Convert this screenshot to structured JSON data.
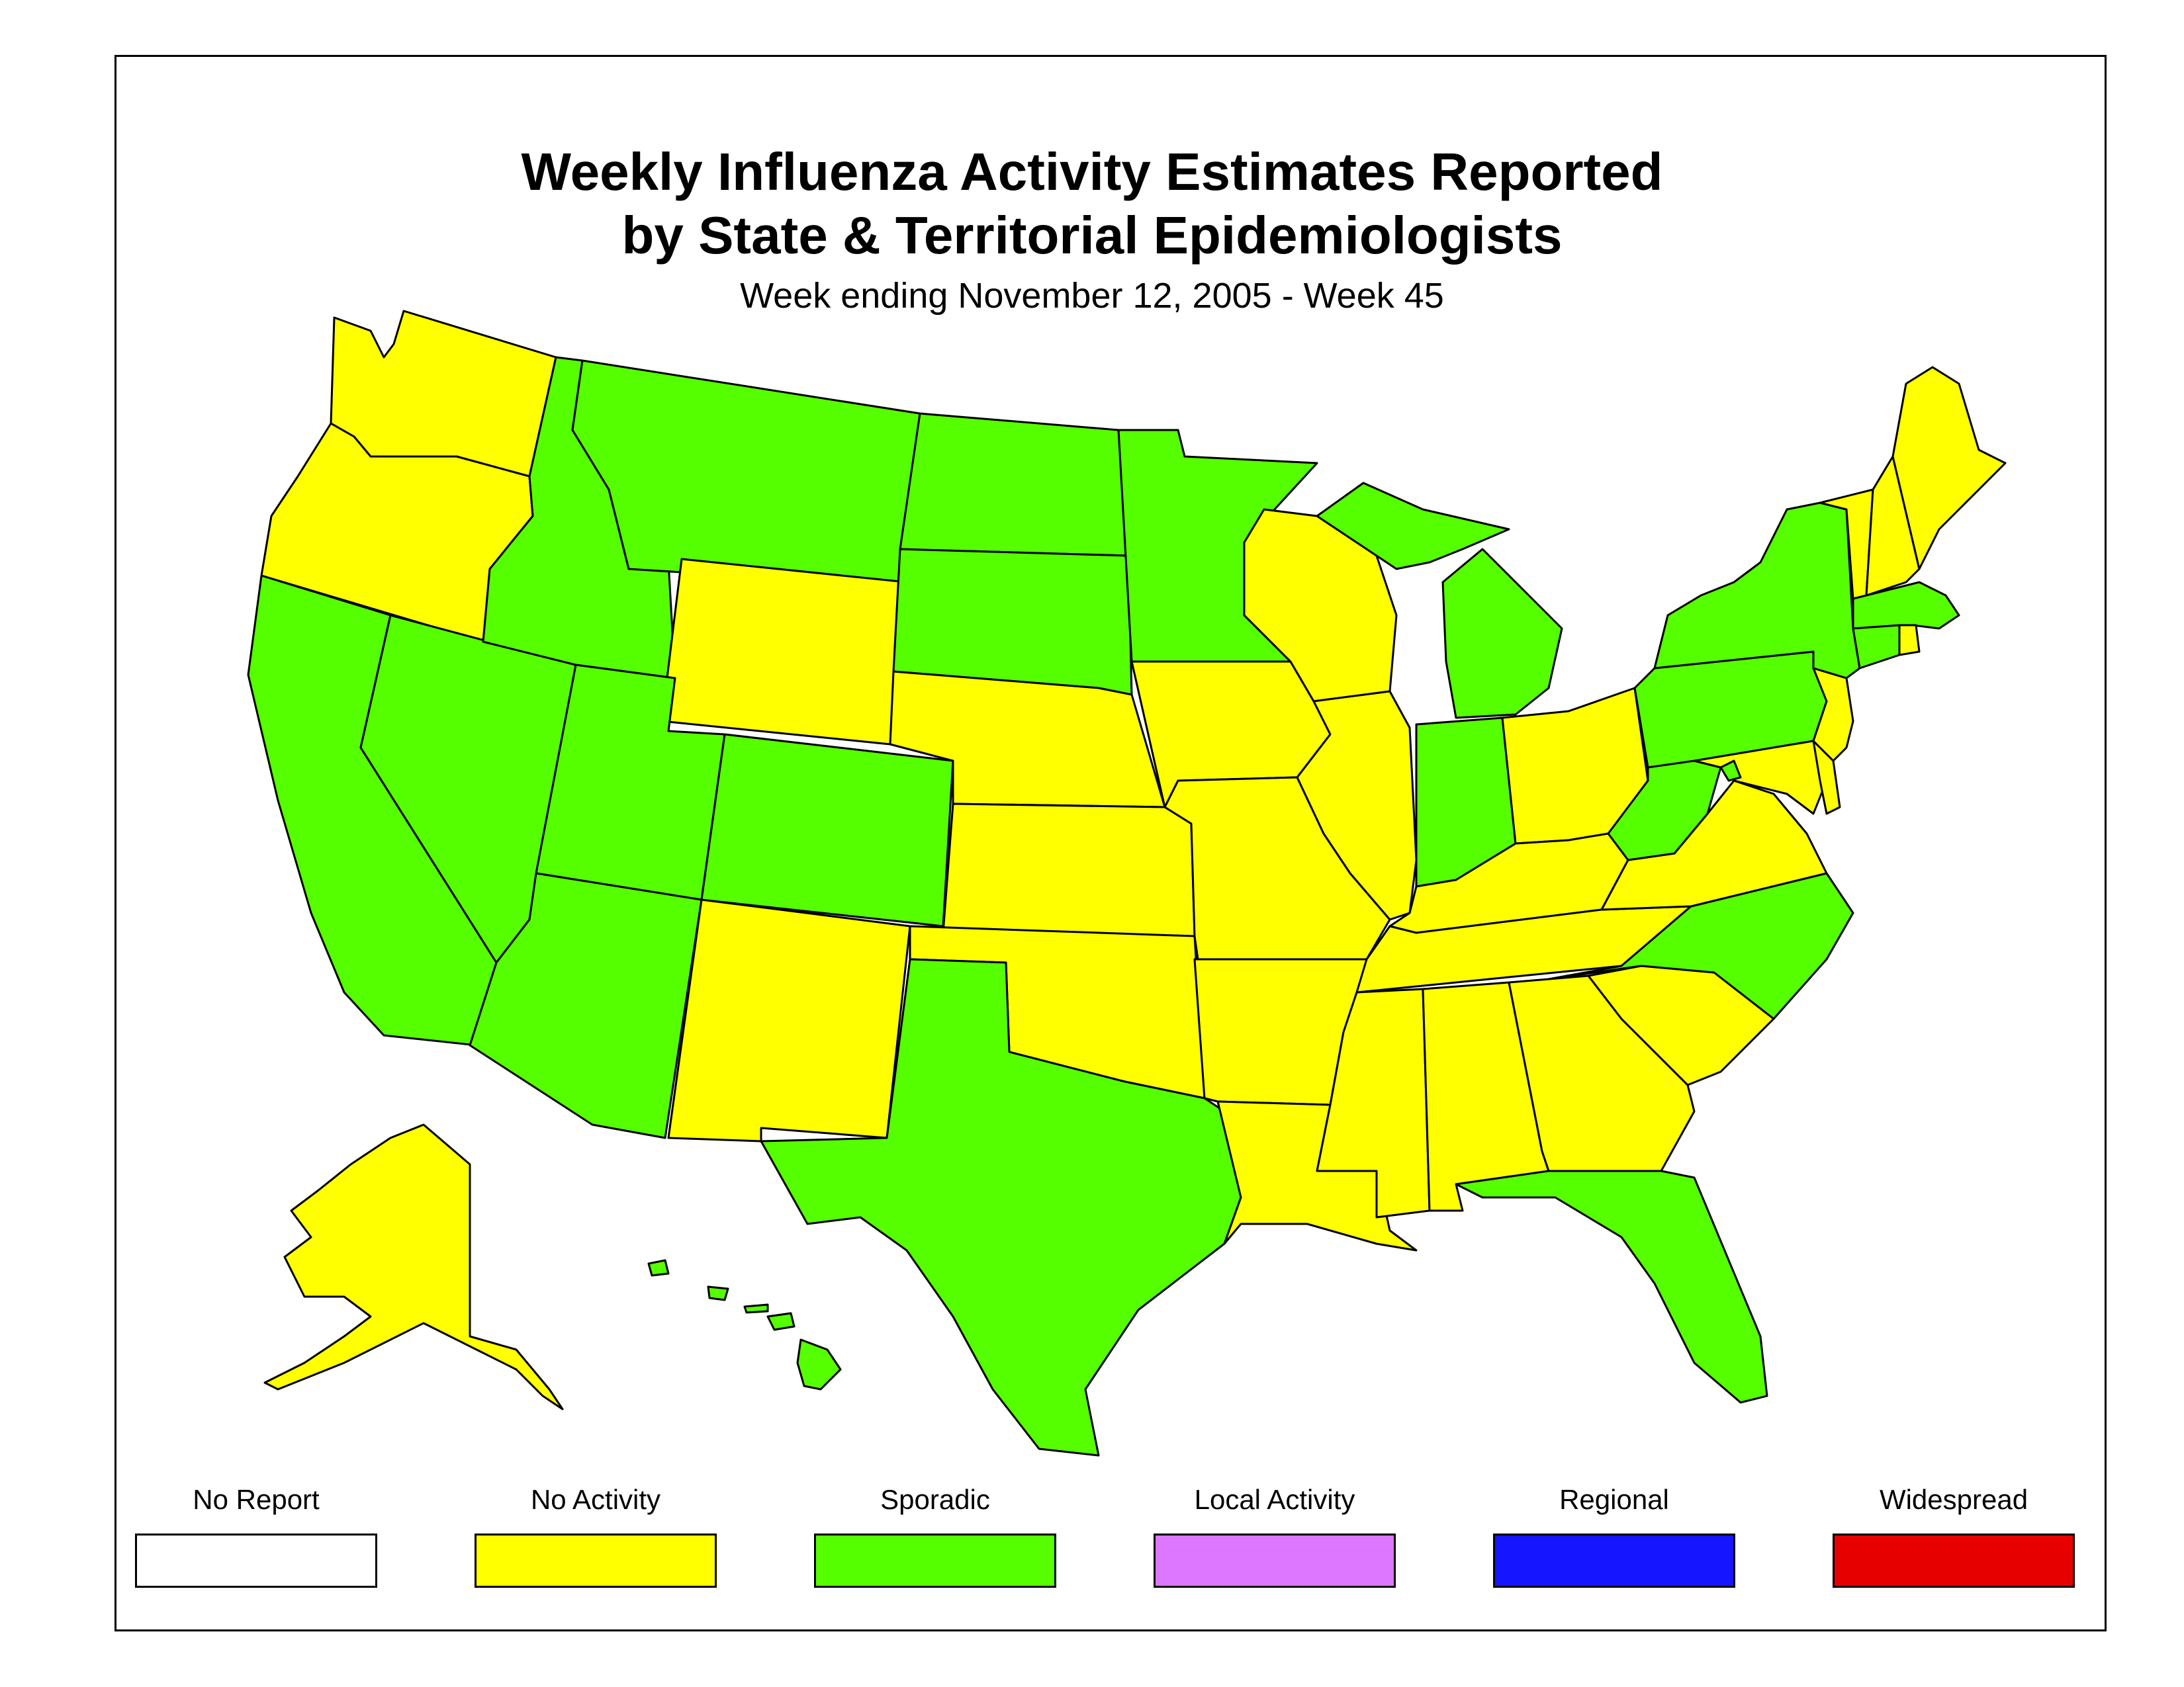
{
  "title_line1": "Weekly Influenza Activity Estimates Reported",
  "title_line2": "by State & Territorial Epidemiologists",
  "subtitle": "Week ending November 12, 2005 - Week 45",
  "legend": [
    {
      "label": "No Report",
      "color": "#FFFFFF"
    },
    {
      "label": "No Activity",
      "color": "#FFFF00"
    },
    {
      "label": "Sporadic",
      "color": "#55FF00"
    },
    {
      "label": "Local Activity",
      "color": "#DD77FF"
    },
    {
      "label": "Regional",
      "color": "#1515FF"
    },
    {
      "label": "Widespread",
      "color": "#E60000"
    }
  ],
  "activity_colors": {
    "No Activity": "#FFFF00",
    "Sporadic": "#55FF00"
  },
  "states": {
    "WA": "No Activity",
    "OR": "No Activity",
    "CA": "Sporadic",
    "NV": "Sporadic",
    "ID": "Sporadic",
    "MT": "Sporadic",
    "WY": "No Activity",
    "UT": "Sporadic",
    "CO": "Sporadic",
    "AZ": "Sporadic",
    "NM": "No Activity",
    "ND": "Sporadic",
    "SD": "Sporadic",
    "NE": "No Activity",
    "KS": "No Activity",
    "OK": "No Activity",
    "TX": "Sporadic",
    "MN": "Sporadic",
    "IA": "No Activity",
    "MO": "No Activity",
    "AR": "No Activity",
    "LA": "No Activity",
    "WI": "No Activity",
    "IL": "No Activity",
    "MI": "Sporadic",
    "IN": "Sporadic",
    "OH": "No Activity",
    "KY": "No Activity",
    "TN": "No Activity",
    "MS": "No Activity",
    "AL": "No Activity",
    "GA": "No Activity",
    "FL": "Sporadic",
    "SC": "No Activity",
    "NC": "Sporadic",
    "VA": "No Activity",
    "WV": "Sporadic",
    "PA": "Sporadic",
    "NY": "Sporadic",
    "VT": "No Activity",
    "NH": "No Activity",
    "ME": "No Activity",
    "MA": "Sporadic",
    "CT": "Sporadic",
    "RI": "No Activity",
    "NJ": "No Activity",
    "DE": "No Activity",
    "MD": "No Activity",
    "DC": "Sporadic",
    "AK": "No Activity",
    "HI": "Sporadic"
  }
}
